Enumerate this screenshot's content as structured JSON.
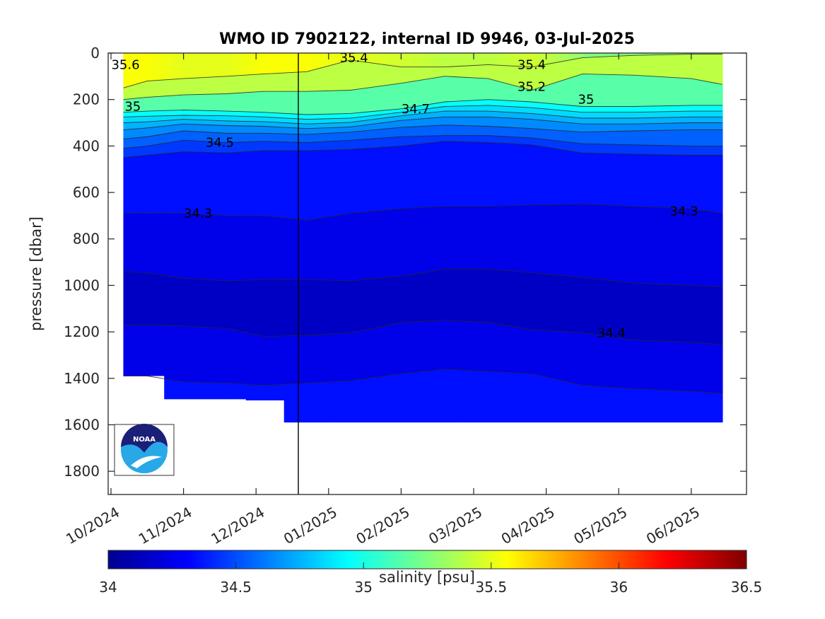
{
  "chart_data": {
    "type": "heatmap",
    "title": "WMO ID 7902122, internal ID 9946, 03-Jul-2025",
    "ylabel": "pressure [dbar]",
    "ylim": [
      0,
      1900
    ],
    "y_reversed": true,
    "yticks": [
      "0",
      "200",
      "400",
      "600",
      "800",
      "1000",
      "1200",
      "1400",
      "1600",
      "1800"
    ],
    "xticks": [
      "10/2024",
      "11/2024",
      "12/2024",
      "01/2025",
      "02/2025",
      "03/2025",
      "04/2025",
      "05/2025",
      "06/2025"
    ],
    "colorbar": {
      "label": "salinity [psu]",
      "range": [
        34,
        36.5
      ],
      "ticks": [
        "34",
        "34.5",
        "35",
        "35.5",
        "36",
        "36.5"
      ],
      "colormap": "jet"
    },
    "marker_date": "01/2025 (approx. 2024-12-22)",
    "contour_labels": [
      {
        "text": "35.6",
        "month": 0.2,
        "pressure": 50
      },
      {
        "text": "35.4",
        "month": 3.35,
        "pressure": 20
      },
      {
        "text": "35.4",
        "month": 5.8,
        "pressure": 50
      },
      {
        "text": "35.2",
        "month": 5.8,
        "pressure": 145
      },
      {
        "text": "35",
        "month": 0.3,
        "pressure": 230
      },
      {
        "text": "35",
        "month": 6.55,
        "pressure": 200
      },
      {
        "text": "34.7",
        "month": 4.2,
        "pressure": 240
      },
      {
        "text": "34.5",
        "month": 1.5,
        "pressure": 385
      },
      {
        "text": "34.3",
        "month": 1.2,
        "pressure": 690
      },
      {
        "text": "34.3",
        "month": 7.9,
        "pressure": 680
      },
      {
        "text": "34.4",
        "month": 6.9,
        "pressure": 1205
      }
    ],
    "profiles": [
      {
        "month": 0.17,
        "max_pressure": 1390,
        "boundaries": [
          {
            "s": 35.4,
            "p": 150
          },
          {
            "s": 35.2,
            "p": 200
          },
          {
            "s": 35.0,
            "p": 255
          },
          {
            "s": 34.9,
            "p": 275
          },
          {
            "s": 34.8,
            "p": 300
          },
          {
            "s": 34.7,
            "p": 330
          },
          {
            "s": 34.6,
            "p": 370
          },
          {
            "s": 34.5,
            "p": 410
          },
          {
            "s": 34.4,
            "p": 450
          },
          {
            "s": 34.3,
            "p": 690
          },
          {
            "s": 34.2,
            "p": 940
          },
          {
            "s": 34.3,
            "p": 1170
          },
          {
            "s": 34.4,
            "p": 1390
          }
        ],
        "top": 35.55
      },
      {
        "month": 0.5,
        "max_pressure": 1390,
        "boundaries": [
          {
            "s": 35.4,
            "p": 120
          },
          {
            "s": 35.2,
            "p": 190
          },
          {
            "s": 35.0,
            "p": 250
          },
          {
            "s": 34.9,
            "p": 272
          },
          {
            "s": 34.8,
            "p": 296
          },
          {
            "s": 34.7,
            "p": 322
          },
          {
            "s": 34.6,
            "p": 360
          },
          {
            "s": 34.5,
            "p": 400
          },
          {
            "s": 34.4,
            "p": 440
          },
          {
            "s": 34.3,
            "p": 690
          },
          {
            "s": 34.2,
            "p": 945
          },
          {
            "s": 34.3,
            "p": 1170
          },
          {
            "s": 34.4,
            "p": 1390
          }
        ],
        "top": 35.55
      },
      {
        "month": 1.0,
        "max_pressure": 1490,
        "boundaries": [
          {
            "s": 35.4,
            "p": 110
          },
          {
            "s": 35.2,
            "p": 180
          },
          {
            "s": 35.0,
            "p": 245
          },
          {
            "s": 34.9,
            "p": 268
          },
          {
            "s": 34.8,
            "p": 285
          },
          {
            "s": 34.7,
            "p": 305
          },
          {
            "s": 34.6,
            "p": 335
          },
          {
            "s": 34.5,
            "p": 375
          },
          {
            "s": 34.4,
            "p": 425
          },
          {
            "s": 34.3,
            "p": 690
          },
          {
            "s": 34.2,
            "p": 970
          },
          {
            "s": 34.3,
            "p": 1175
          },
          {
            "s": 34.4,
            "p": 1415
          }
        ],
        "top": 35.5
      },
      {
        "month": 1.6,
        "max_pressure": 1490,
        "boundaries": [
          {
            "s": 35.4,
            "p": 100
          },
          {
            "s": 35.2,
            "p": 175
          },
          {
            "s": 35.0,
            "p": 250
          },
          {
            "s": 34.9,
            "p": 270
          },
          {
            "s": 34.8,
            "p": 292
          },
          {
            "s": 34.7,
            "p": 312
          },
          {
            "s": 34.6,
            "p": 345
          },
          {
            "s": 34.5,
            "p": 385
          },
          {
            "s": 34.4,
            "p": 430
          },
          {
            "s": 34.3,
            "p": 700
          },
          {
            "s": 34.2,
            "p": 980
          },
          {
            "s": 34.3,
            "p": 1185
          },
          {
            "s": 34.4,
            "p": 1420
          }
        ],
        "top": 35.5
      },
      {
        "month": 2.1,
        "max_pressure": 1495,
        "boundaries": [
          {
            "s": 35.4,
            "p": 90
          },
          {
            "s": 35.2,
            "p": 165
          },
          {
            "s": 35.0,
            "p": 255
          },
          {
            "s": 34.9,
            "p": 275
          },
          {
            "s": 34.8,
            "p": 295
          },
          {
            "s": 34.7,
            "p": 315
          },
          {
            "s": 34.6,
            "p": 345
          },
          {
            "s": 34.5,
            "p": 380
          },
          {
            "s": 34.4,
            "p": 420
          },
          {
            "s": 34.3,
            "p": 700
          },
          {
            "s": 34.2,
            "p": 975
          },
          {
            "s": 34.3,
            "p": 1220
          },
          {
            "s": 34.4,
            "p": 1430
          }
        ],
        "top": 35.55
      },
      {
        "month": 2.7,
        "max_pressure": 1590,
        "boundaries": [
          {
            "s": 35.4,
            "p": 80
          },
          {
            "s": 35.2,
            "p": 165
          },
          {
            "s": 35.0,
            "p": 265
          },
          {
            "s": 34.9,
            "p": 285
          },
          {
            "s": 34.8,
            "p": 305
          },
          {
            "s": 34.7,
            "p": 325
          },
          {
            "s": 34.6,
            "p": 350
          },
          {
            "s": 34.5,
            "p": 385
          },
          {
            "s": 34.4,
            "p": 420
          },
          {
            "s": 34.3,
            "p": 720
          },
          {
            "s": 34.2,
            "p": 975
          },
          {
            "s": 34.3,
            "p": 1215
          },
          {
            "s": 34.4,
            "p": 1420
          }
        ],
        "top": 35.55
      },
      {
        "month": 3.3,
        "max_pressure": 1590,
        "boundaries": [
          {
            "s": 35.4,
            "p": 30
          },
          {
            "s": 35.2,
            "p": 160
          },
          {
            "s": 35.0,
            "p": 260
          },
          {
            "s": 34.9,
            "p": 280
          },
          {
            "s": 34.8,
            "p": 298
          },
          {
            "s": 34.7,
            "p": 318
          },
          {
            "s": 34.6,
            "p": 340
          },
          {
            "s": 34.5,
            "p": 375
          },
          {
            "s": 34.4,
            "p": 415
          },
          {
            "s": 34.3,
            "p": 690
          },
          {
            "s": 34.2,
            "p": 980
          },
          {
            "s": 34.3,
            "p": 1205
          },
          {
            "s": 34.4,
            "p": 1410
          }
        ],
        "top": 35.5
      },
      {
        "month": 4.0,
        "max_pressure": 1590,
        "boundaries": [
          {
            "s": 35.4,
            "p": 60
          },
          {
            "s": 35.2,
            "p": 130
          },
          {
            "s": 35.0,
            "p": 240
          },
          {
            "s": 34.9,
            "p": 255
          },
          {
            "s": 34.8,
            "p": 270
          },
          {
            "s": 34.7,
            "p": 290
          },
          {
            "s": 34.6,
            "p": 320
          },
          {
            "s": 34.5,
            "p": 360
          },
          {
            "s": 34.4,
            "p": 400
          },
          {
            "s": 34.3,
            "p": 670
          },
          {
            "s": 34.2,
            "p": 960
          },
          {
            "s": 34.3,
            "p": 1160
          },
          {
            "s": 34.4,
            "p": 1380
          }
        ],
        "top": 35.45
      },
      {
        "month": 4.6,
        "max_pressure": 1590,
        "boundaries": [
          {
            "s": 35.4,
            "p": 60
          },
          {
            "s": 35.2,
            "p": 100
          },
          {
            "s": 35.0,
            "p": 210
          },
          {
            "s": 34.9,
            "p": 230
          },
          {
            "s": 34.8,
            "p": 250
          },
          {
            "s": 34.7,
            "p": 275
          },
          {
            "s": 34.6,
            "p": 310
          },
          {
            "s": 34.5,
            "p": 355
          },
          {
            "s": 34.4,
            "p": 380
          },
          {
            "s": 34.3,
            "p": 660
          },
          {
            "s": 34.2,
            "p": 930
          },
          {
            "s": 34.3,
            "p": 1150
          },
          {
            "s": 34.4,
            "p": 1360
          }
        ],
        "top": 35.4
      },
      {
        "month": 5.2,
        "max_pressure": 1590,
        "boundaries": [
          {
            "s": 35.4,
            "p": 50
          },
          {
            "s": 35.2,
            "p": 110
          },
          {
            "s": 35.0,
            "p": 200
          },
          {
            "s": 34.9,
            "p": 225
          },
          {
            "s": 34.8,
            "p": 250
          },
          {
            "s": 34.7,
            "p": 275
          },
          {
            "s": 34.6,
            "p": 315
          },
          {
            "s": 34.5,
            "p": 355
          },
          {
            "s": 34.4,
            "p": 385
          },
          {
            "s": 34.3,
            "p": 660
          },
          {
            "s": 34.2,
            "p": 930
          },
          {
            "s": 34.3,
            "p": 1160
          },
          {
            "s": 34.4,
            "p": 1370
          }
        ],
        "top": 35.4
      },
      {
        "month": 5.8,
        "max_pressure": 1590,
        "boundaries": [
          {
            "s": 35.4,
            "p": 60
          },
          {
            "s": 35.2,
            "p": 160
          },
          {
            "s": 35.0,
            "p": 210
          },
          {
            "s": 34.9,
            "p": 235
          },
          {
            "s": 34.8,
            "p": 260
          },
          {
            "s": 34.7,
            "p": 285
          },
          {
            "s": 34.6,
            "p": 325
          },
          {
            "s": 34.5,
            "p": 365
          },
          {
            "s": 34.4,
            "p": 395
          },
          {
            "s": 34.3,
            "p": 655
          },
          {
            "s": 34.2,
            "p": 945
          },
          {
            "s": 34.3,
            "p": 1190
          },
          {
            "s": 34.4,
            "p": 1380
          }
        ],
        "top": 35.45
      },
      {
        "month": 6.5,
        "max_pressure": 1590,
        "boundaries": [
          {
            "s": 35.4,
            "p": 20
          },
          {
            "s": 35.2,
            "p": 90
          },
          {
            "s": 35.0,
            "p": 230
          },
          {
            "s": 34.9,
            "p": 255
          },
          {
            "s": 34.8,
            "p": 280
          },
          {
            "s": 34.7,
            "p": 305
          },
          {
            "s": 34.6,
            "p": 340
          },
          {
            "s": 34.5,
            "p": 390
          },
          {
            "s": 34.4,
            "p": 430
          },
          {
            "s": 34.3,
            "p": 650
          },
          {
            "s": 34.2,
            "p": 965
          },
          {
            "s": 34.3,
            "p": 1205
          },
          {
            "s": 34.4,
            "p": 1430
          }
        ],
        "top": 35.3
      },
      {
        "month": 7.2,
        "max_pressure": 1590,
        "boundaries": [
          {
            "s": 35.4,
            "p": 10
          },
          {
            "s": 35.2,
            "p": 95
          },
          {
            "s": 35.0,
            "p": 230
          },
          {
            "s": 34.9,
            "p": 255
          },
          {
            "s": 34.8,
            "p": 280
          },
          {
            "s": 34.7,
            "p": 305
          },
          {
            "s": 34.6,
            "p": 335
          },
          {
            "s": 34.5,
            "p": 395
          },
          {
            "s": 34.4,
            "p": 435
          },
          {
            "s": 34.3,
            "p": 660
          },
          {
            "s": 34.2,
            "p": 990
          },
          {
            "s": 34.3,
            "p": 1235
          },
          {
            "s": 34.4,
            "p": 1445
          }
        ],
        "top": 35.3
      },
      {
        "month": 8.0,
        "max_pressure": 1590,
        "boundaries": [
          {
            "s": 35.4,
            "p": 5
          },
          {
            "s": 35.2,
            "p": 110
          },
          {
            "s": 35.0,
            "p": 225
          },
          {
            "s": 34.9,
            "p": 250
          },
          {
            "s": 34.8,
            "p": 275
          },
          {
            "s": 34.7,
            "p": 300
          },
          {
            "s": 34.6,
            "p": 330
          },
          {
            "s": 34.5,
            "p": 400
          },
          {
            "s": 34.4,
            "p": 440
          },
          {
            "s": 34.3,
            "p": 670
          },
          {
            "s": 34.2,
            "p": 1000
          },
          {
            "s": 34.3,
            "p": 1245
          },
          {
            "s": 34.4,
            "p": 1455
          }
        ],
        "top": 35.3
      },
      {
        "month": 8.43,
        "max_pressure": 1590,
        "boundaries": [
          {
            "s": 35.4,
            "p": 5
          },
          {
            "s": 35.2,
            "p": 135
          },
          {
            "s": 35.0,
            "p": 225
          },
          {
            "s": 34.9,
            "p": 250
          },
          {
            "s": 34.8,
            "p": 275
          },
          {
            "s": 34.7,
            "p": 300
          },
          {
            "s": 34.6,
            "p": 330
          },
          {
            "s": 34.5,
            "p": 400
          },
          {
            "s": 34.4,
            "p": 440
          },
          {
            "s": 34.3,
            "p": 690
          },
          {
            "s": 34.2,
            "p": 1005
          },
          {
            "s": 34.3,
            "p": 1255
          },
          {
            "s": 34.4,
            "p": 1465
          }
        ],
        "top": 35.3
      }
    ]
  },
  "logo": {
    "text": "NOAA",
    "colors": {
      "navy": "#1a1f77",
      "cyan": "#29a8e8"
    }
  }
}
